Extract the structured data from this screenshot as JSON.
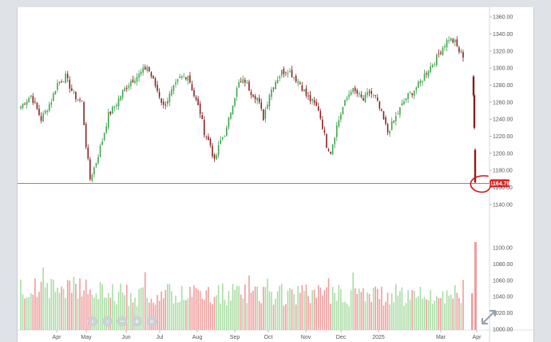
{
  "chart_data": {
    "type": "candlestick",
    "title": "",
    "x_months": [
      "Apr",
      "May",
      "Jun",
      "Jul",
      "Aug",
      "Sep",
      "Oct",
      "Nov",
      "Dec",
      "2025",
      "Mar",
      "Apr"
    ],
    "price_axis": {
      "ticks": [
        "1360.00",
        "1340.00",
        "1320.00",
        "1300.00",
        "1280.00",
        "1260.00",
        "1240.00",
        "1220.00",
        "1200.00",
        "1180.00",
        "1160.00",
        "1140.00"
      ],
      "ylim": [
        1138,
        1363
      ]
    },
    "volume_axis": {
      "ticks": [
        "1100.00",
        "1080.00",
        "1060.00",
        "1040.00",
        "1020.00",
        "1000.00"
      ],
      "ylim": [
        999,
        1108
      ]
    },
    "price_anchors": [
      [
        0,
        1255
      ],
      [
        5,
        1268
      ],
      [
        10,
        1240
      ],
      [
        15,
        1262
      ],
      [
        18,
        1282
      ],
      [
        22,
        1290
      ],
      [
        26,
        1268
      ],
      [
        30,
        1260
      ],
      [
        32,
        1210
      ],
      [
        34,
        1170
      ],
      [
        37,
        1190
      ],
      [
        40,
        1215
      ],
      [
        43,
        1245
      ],
      [
        46,
        1255
      ],
      [
        50,
        1272
      ],
      [
        54,
        1285
      ],
      [
        58,
        1292
      ],
      [
        62,
        1302
      ],
      [
        65,
        1285
      ],
      [
        68,
        1268
      ],
      [
        70,
        1255
      ],
      [
        74,
        1272
      ],
      [
        78,
        1288
      ],
      [
        82,
        1292
      ],
      [
        85,
        1268
      ],
      [
        88,
        1248
      ],
      [
        90,
        1225
      ],
      [
        93,
        1210
      ],
      [
        95,
        1190
      ],
      [
        98,
        1215
      ],
      [
        101,
        1228
      ],
      [
        104,
        1260
      ],
      [
        107,
        1282
      ],
      [
        110,
        1285
      ],
      [
        113,
        1272
      ],
      [
        116,
        1265
      ],
      [
        119,
        1242
      ],
      [
        122,
        1270
      ],
      [
        125,
        1285
      ],
      [
        128,
        1295
      ],
      [
        131,
        1298
      ],
      [
        134,
        1290
      ],
      [
        137,
        1282
      ],
      [
        140,
        1268
      ],
      [
        143,
        1260
      ],
      [
        146,
        1252
      ],
      [
        148,
        1232
      ],
      [
        150,
        1210
      ],
      [
        152,
        1202
      ],
      [
        155,
        1232
      ],
      [
        158,
        1254
      ],
      [
        162,
        1275
      ],
      [
        165,
        1270
      ],
      [
        168,
        1262
      ],
      [
        171,
        1272
      ],
      [
        174,
        1265
      ],
      [
        177,
        1246
      ],
      [
        180,
        1225
      ],
      [
        183,
        1238
      ],
      [
        186,
        1252
      ],
      [
        189,
        1265
      ],
      [
        192,
        1272
      ],
      [
        195,
        1280
      ],
      [
        198,
        1292
      ],
      [
        201,
        1302
      ],
      [
        204,
        1312
      ],
      [
        207,
        1325
      ],
      [
        210,
        1335
      ],
      [
        213,
        1330
      ],
      [
        215,
        1320
      ],
      [
        217,
        1315
      ]
    ],
    "n_candles": 218,
    "gap_moves": [
      [
        1290,
        1268
      ],
      [
        1268,
        1230
      ],
      [
        1204,
        1166
      ]
    ],
    "last_price": "1164.79",
    "reference_line": 1164.79,
    "colors": {
      "up": "#3fa34d",
      "down": "#8a1d1d",
      "vol_up": "#a9dca3",
      "vol_down": "#f19b9b",
      "line": "#e84a4a",
      "badge": "#e52222"
    }
  },
  "navigator": {
    "buttons": [
      {
        "icon": "chevron-left-icon",
        "glyph": "‹"
      },
      {
        "icon": "chevron-right-icon",
        "glyph": "›"
      },
      {
        "icon": "zoom-out-icon",
        "glyph": "−"
      },
      {
        "icon": "zoom-in-icon",
        "glyph": "+"
      },
      {
        "icon": "chevron-right-end-icon",
        "glyph": "»"
      }
    ]
  },
  "expand_icon": "expand-arrows-icon"
}
